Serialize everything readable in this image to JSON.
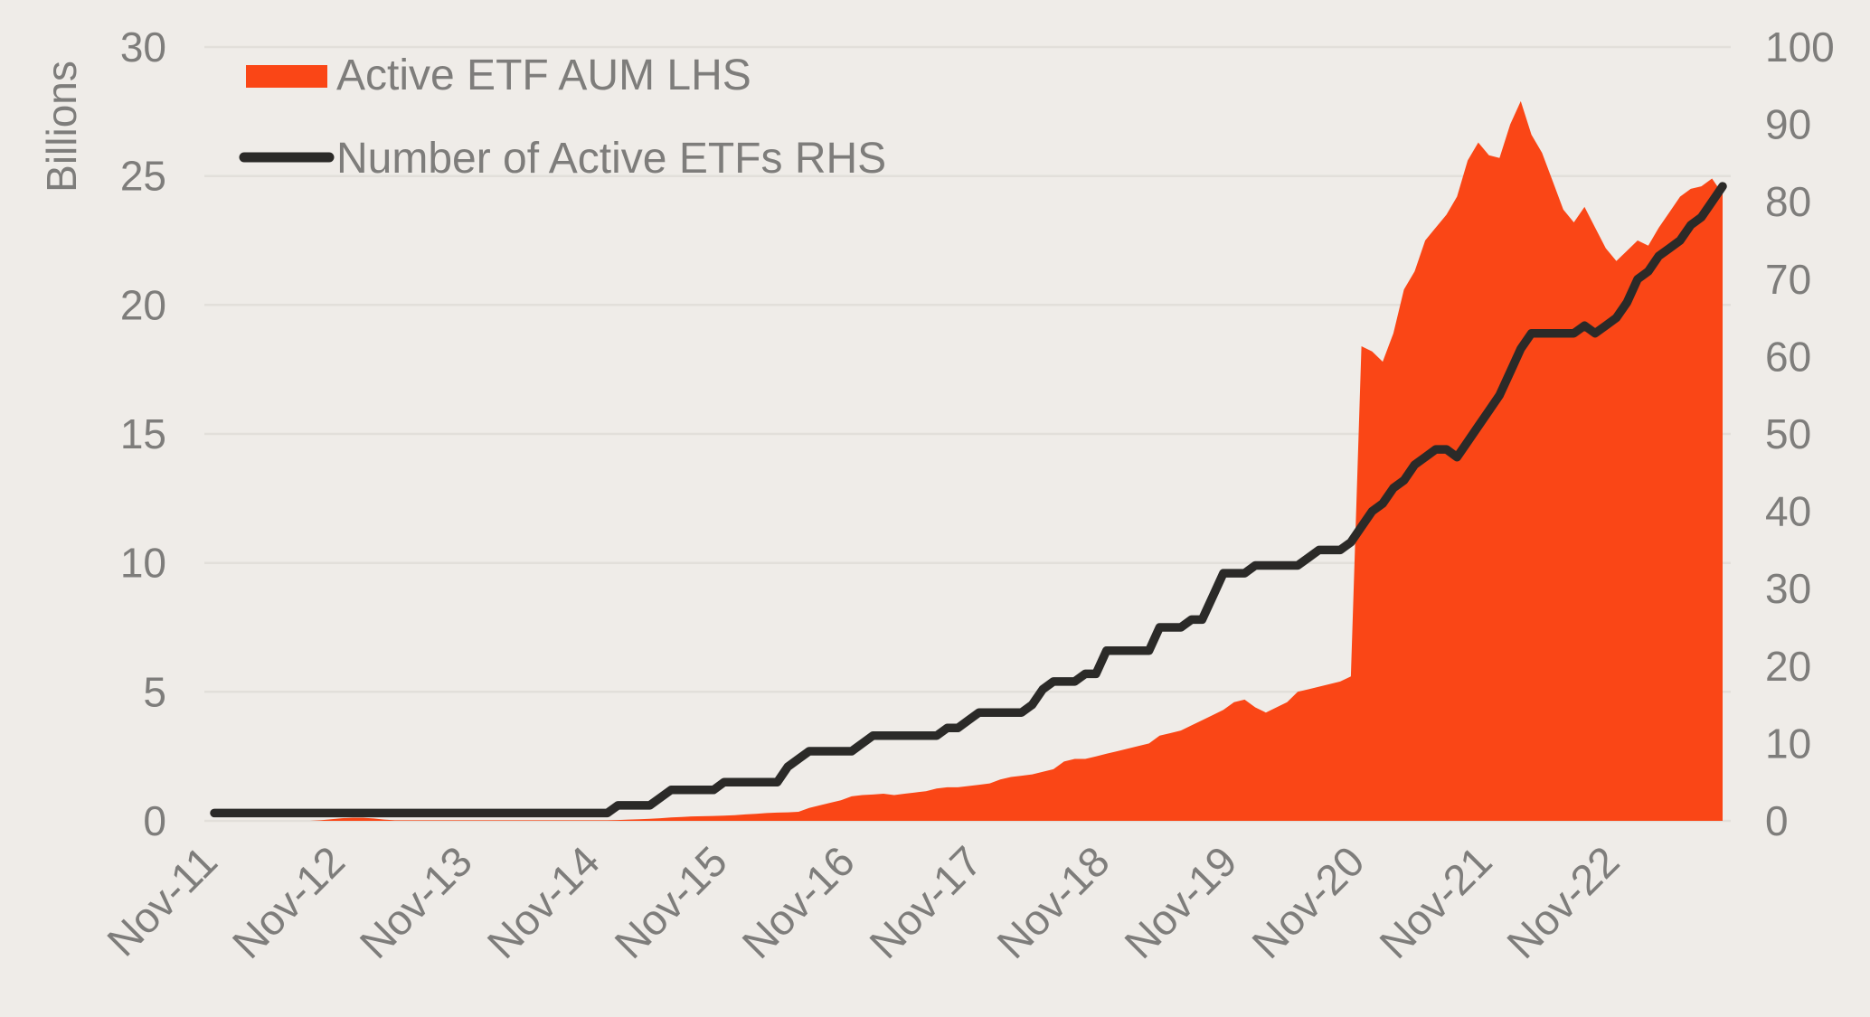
{
  "figure": {
    "background": "#EFECE8",
    "gridline_color": "#E2DFDA",
    "text_color": "#7E7D7B",
    "area_color": "#FA4616",
    "line_color": "#2B2A28"
  },
  "legend": {
    "items": [
      {
        "label": "Active ETF AUM LHS",
        "swatch": "area",
        "color": "#FA4616"
      },
      {
        "label": "Number of Active ETFs RHS",
        "swatch": "line",
        "color": "#2B2A28"
      }
    ]
  },
  "axes": {
    "left": {
      "title": "Billions",
      "ticks": [
        0,
        5,
        10,
        15,
        20,
        25,
        30
      ],
      "range": [
        0,
        30
      ]
    },
    "right": {
      "ticks": [
        0,
        10,
        20,
        30,
        40,
        50,
        60,
        70,
        80,
        90,
        100
      ],
      "range": [
        0,
        100
      ]
    },
    "x": {
      "tick_labels": [
        "Nov-11",
        "Nov-12",
        "Nov-13",
        "Nov-14",
        "Nov-15",
        "Nov-16",
        "Nov-17",
        "Nov-18",
        "Nov-19",
        "Nov-20",
        "Nov-21",
        "Nov-22"
      ]
    }
  },
  "chart_data": {
    "type": "area+line",
    "x_months": [
      "Nov-11",
      "Dec-11",
      "Jan-12",
      "Feb-12",
      "Mar-12",
      "Apr-12",
      "May-12",
      "Jun-12",
      "Jul-12",
      "Aug-12",
      "Sep-12",
      "Oct-12",
      "Nov-12",
      "Dec-12",
      "Jan-13",
      "Feb-13",
      "Mar-13",
      "Apr-13",
      "May-13",
      "Jun-13",
      "Jul-13",
      "Aug-13",
      "Sep-13",
      "Oct-13",
      "Nov-13",
      "Dec-13",
      "Jan-14",
      "Feb-14",
      "Mar-14",
      "Apr-14",
      "May-14",
      "Jun-14",
      "Jul-14",
      "Aug-14",
      "Sep-14",
      "Oct-14",
      "Nov-14",
      "Dec-14",
      "Jan-15",
      "Feb-15",
      "Mar-15",
      "Apr-15",
      "May-15",
      "Jun-15",
      "Jul-15",
      "Aug-15",
      "Sep-15",
      "Oct-15",
      "Nov-15",
      "Dec-15",
      "Jan-16",
      "Feb-16",
      "Mar-16",
      "Apr-16",
      "May-16",
      "Jun-16",
      "Jul-16",
      "Aug-16",
      "Sep-16",
      "Oct-16",
      "Nov-16",
      "Dec-16",
      "Jan-17",
      "Feb-17",
      "Mar-17",
      "Apr-17",
      "May-17",
      "Jun-17",
      "Jul-17",
      "Aug-17",
      "Sep-17",
      "Oct-17",
      "Nov-17",
      "Dec-17",
      "Jan-18",
      "Feb-18",
      "Mar-18",
      "Apr-18",
      "May-18",
      "Jun-18",
      "Jul-18",
      "Aug-18",
      "Sep-18",
      "Oct-18",
      "Nov-18",
      "Dec-18",
      "Jan-19",
      "Feb-19",
      "Mar-19",
      "Apr-19",
      "May-19",
      "Jun-19",
      "Jul-19",
      "Aug-19",
      "Sep-19",
      "Oct-19",
      "Nov-19",
      "Dec-19",
      "Jan-20",
      "Feb-20",
      "Mar-20",
      "Apr-20",
      "May-20",
      "Jun-20",
      "Jul-20",
      "Aug-20",
      "Sep-20",
      "Oct-20",
      "Nov-20",
      "Dec-20",
      "Jan-21",
      "Feb-21",
      "Mar-21",
      "Apr-21",
      "May-21",
      "Jun-21",
      "Jul-21",
      "Aug-21",
      "Sep-21",
      "Oct-21",
      "Nov-21",
      "Dec-21",
      "Jan-22",
      "Feb-22",
      "Mar-22",
      "Apr-22",
      "May-22",
      "Jun-22",
      "Jul-22",
      "Aug-22",
      "Sep-22",
      "Oct-22",
      "Nov-22",
      "Dec-22",
      "Jan-23",
      "Feb-23",
      "Mar-23",
      "Apr-23",
      "May-23",
      "Jun-23",
      "Jul-23",
      "Aug-23",
      "Sep-23"
    ],
    "series": [
      {
        "name": "Active ETF AUM LHS",
        "type": "area",
        "axis": "left",
        "unit": "billions",
        "values": [
          0,
          0,
          0,
          0,
          0,
          0,
          0,
          0,
          0,
          0,
          0.02,
          0.06,
          0.1,
          0.12,
          0.12,
          0.09,
          0.05,
          0.02,
          0.02,
          0.02,
          0.02,
          0.02,
          0.02,
          0.02,
          0.02,
          0.02,
          0.02,
          0.02,
          0.02,
          0.02,
          0.02,
          0.02,
          0.02,
          0.02,
          0.02,
          0.02,
          0.02,
          0.02,
          0.03,
          0.05,
          0.06,
          0.08,
          0.1,
          0.13,
          0.15,
          0.17,
          0.18,
          0.19,
          0.2,
          0.22,
          0.25,
          0.27,
          0.3,
          0.32,
          0.33,
          0.35,
          0.5,
          0.6,
          0.7,
          0.8,
          0.95,
          1.0,
          1.02,
          1.05,
          1.0,
          1.05,
          1.1,
          1.15,
          1.25,
          1.3,
          1.3,
          1.35,
          1.4,
          1.45,
          1.6,
          1.7,
          1.75,
          1.8,
          1.9,
          2.0,
          2.3,
          2.4,
          2.4,
          2.5,
          2.6,
          2.7,
          2.8,
          2.9,
          3.0,
          3.3,
          3.4,
          3.5,
          3.7,
          3.9,
          4.1,
          4.3,
          4.6,
          4.7,
          4.4,
          4.2,
          4.4,
          4.6,
          5.0,
          5.1,
          5.2,
          5.3,
          5.4,
          5.6,
          18.4,
          18.2,
          17.8,
          18.9,
          20.6,
          21.3,
          22.5,
          23.0,
          23.5,
          24.2,
          25.6,
          26.3,
          25.8,
          25.7,
          27.0,
          27.9,
          26.6,
          25.9,
          24.8,
          23.7,
          23.2,
          23.8,
          23.0,
          22.2,
          21.7,
          22.1,
          22.5,
          22.3,
          23.0,
          23.6,
          24.2,
          24.5,
          24.6,
          24.9,
          24.3
        ]
      },
      {
        "name": "Number of Active ETFs RHS",
        "type": "line",
        "axis": "right",
        "unit": "count",
        "values": [
          1,
          1,
          1,
          1,
          1,
          1,
          1,
          1,
          1,
          1,
          1,
          1,
          1,
          1,
          1,
          1,
          1,
          1,
          1,
          1,
          1,
          1,
          1,
          1,
          1,
          1,
          1,
          1,
          1,
          1,
          1,
          1,
          1,
          1,
          1,
          1,
          1,
          1,
          2,
          2,
          2,
          2,
          3,
          4,
          4,
          4,
          4,
          4,
          5,
          5,
          5,
          5,
          5,
          5,
          7,
          8,
          9,
          9,
          9,
          9,
          9,
          10,
          11,
          11,
          11,
          11,
          11,
          11,
          11,
          12,
          12,
          13,
          14,
          14,
          14,
          14,
          14,
          15,
          17,
          18,
          18,
          18,
          19,
          19,
          22,
          22,
          22,
          22,
          22,
          25,
          25,
          25,
          26,
          26,
          29,
          32,
          32,
          32,
          33,
          33,
          33,
          33,
          33,
          34,
          35,
          35,
          35,
          36,
          38,
          40,
          41,
          43,
          44,
          46,
          47,
          48,
          48,
          47,
          49,
          51,
          53,
          55,
          58,
          61,
          63,
          63,
          63,
          63,
          63,
          64,
          63,
          64,
          65,
          67,
          70,
          71,
          73,
          74,
          75,
          77,
          78,
          80,
          82
        ]
      }
    ],
    "grid": "horizontal",
    "legend_position": "top-left"
  }
}
